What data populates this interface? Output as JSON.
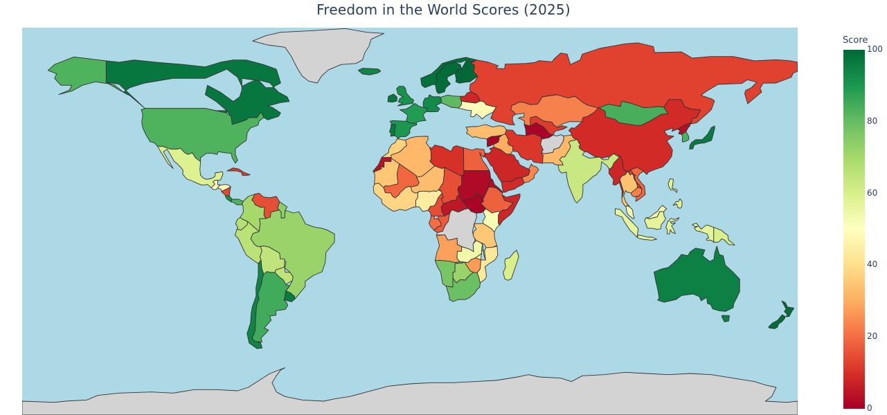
{
  "title": "Freedom in the World Scores (2025)",
  "map": {
    "ocean_color": "#add8e6",
    "no_data_color": "#d3d3d3",
    "border_color": "#333333"
  },
  "colorbar": {
    "title": "Score",
    "min": 0,
    "max": 100,
    "ticks": [
      "100",
      "80",
      "60",
      "40",
      "20",
      "0"
    ],
    "colorscale": "RdYlGn"
  },
  "chart_data": {
    "type": "choropleth",
    "title": "Freedom in the World Scores (2025)",
    "metric": "Score",
    "range": [
      0,
      100
    ],
    "regions": [
      {
        "name": "Canada",
        "value": 97
      },
      {
        "name": "Alaska (United States)",
        "value": 83
      },
      {
        "name": "United States",
        "value": 83
      },
      {
        "name": "Greenland",
        "value": null
      },
      {
        "name": "Mexico",
        "value": 59
      },
      {
        "name": "Guatemala",
        "value": 51
      },
      {
        "name": "Honduras",
        "value": 47
      },
      {
        "name": "Nicaragua",
        "value": 14
      },
      {
        "name": "Costa Rica",
        "value": 91
      },
      {
        "name": "Panama",
        "value": 83
      },
      {
        "name": "Cuba",
        "value": 12
      },
      {
        "name": "Venezuela",
        "value": 15
      },
      {
        "name": "Guyana",
        "value": 74
      },
      {
        "name": "Colombia",
        "value": 70
      },
      {
        "name": "Ecuador",
        "value": 67
      },
      {
        "name": "Peru",
        "value": 66
      },
      {
        "name": "Brazil",
        "value": 72
      },
      {
        "name": "Bolivia",
        "value": 65
      },
      {
        "name": "Paraguay",
        "value": 65
      },
      {
        "name": "Chile",
        "value": 94
      },
      {
        "name": "Argentina",
        "value": 85
      },
      {
        "name": "Uruguay",
        "value": 96
      },
      {
        "name": "Iceland",
        "value": 94
      },
      {
        "name": "Norway",
        "value": 98
      },
      {
        "name": "Sweden",
        "value": 99
      },
      {
        "name": "Finland",
        "value": 100
      },
      {
        "name": "United Kingdom",
        "value": 91
      },
      {
        "name": "Ireland",
        "value": 97
      },
      {
        "name": "France",
        "value": 89
      },
      {
        "name": "Spain",
        "value": 90
      },
      {
        "name": "Portugal",
        "value": 96
      },
      {
        "name": "Germany",
        "value": 93
      },
      {
        "name": "Poland",
        "value": 81
      },
      {
        "name": "Ukraine",
        "value": 49
      },
      {
        "name": "Belarus",
        "value": 8
      },
      {
        "name": "Russia",
        "value": 13
      },
      {
        "name": "Turkey",
        "value": 33
      },
      {
        "name": "Kazakhstan",
        "value": 23
      },
      {
        "name": "Uzbekistan",
        "value": 12
      },
      {
        "name": "Turkmenistan",
        "value": 1
      },
      {
        "name": "Afghanistan",
        "value": null
      },
      {
        "name": "Mongolia",
        "value": 84
      },
      {
        "name": "China",
        "value": 9
      },
      {
        "name": "Korea, North",
        "value": 3
      },
      {
        "name": "Korea, South",
        "value": 83
      },
      {
        "name": "Japan",
        "value": 96
      },
      {
        "name": "Iran",
        "value": 11
      },
      {
        "name": "Iraq",
        "value": 30
      },
      {
        "name": "Saudi Arabia",
        "value": 8
      },
      {
        "name": "Yemen",
        "value": 9
      },
      {
        "name": "Oman",
        "value": 24
      },
      {
        "name": "Syria",
        "value": 1
      },
      {
        "name": "Pakistan",
        "value": 32
      },
      {
        "name": "India",
        "value": 63
      },
      {
        "name": "Myanmar",
        "value": 8
      },
      {
        "name": "Thailand",
        "value": 34
      },
      {
        "name": "Vietnam",
        "value": 19
      },
      {
        "name": "Laos",
        "value": 13
      },
      {
        "name": "Cambodia",
        "value": 23
      },
      {
        "name": "Malaysia",
        "value": 53
      },
      {
        "name": "Indonesia",
        "value": 57
      },
      {
        "name": "Philippines",
        "value": 58
      },
      {
        "name": "Papua New Guinea",
        "value": 60
      },
      {
        "name": "Australia",
        "value": 95
      },
      {
        "name": "New Zealand",
        "value": 99
      },
      {
        "name": "Morocco",
        "value": 37
      },
      {
        "name": "Western Sahara",
        "value": 4
      },
      {
        "name": "Algeria",
        "value": 32
      },
      {
        "name": "Libya",
        "value": 10
      },
      {
        "name": "Egypt",
        "value": 18
      },
      {
        "name": "Mauritania",
        "value": 35
      },
      {
        "name": "Mali",
        "value": 19
      },
      {
        "name": "Niger",
        "value": 33
      },
      {
        "name": "Chad",
        "value": 15
      },
      {
        "name": "Sudan",
        "value": 2
      },
      {
        "name": "South Sudan",
        "value": 1
      },
      {
        "name": "Ethiopia",
        "value": 18
      },
      {
        "name": "Eritrea",
        "value": 3
      },
      {
        "name": "Somalia",
        "value": 8
      },
      {
        "name": "Kenya",
        "value": 52
      },
      {
        "name": "Nigeria",
        "value": 44
      },
      {
        "name": "Cameroon",
        "value": 15
      },
      {
        "name": "Central African Republic",
        "value": 5
      },
      {
        "name": "Gabon",
        "value": 20
      },
      {
        "name": "Congo, Dem. Rep.",
        "value": null
      },
      {
        "name": "Tanzania",
        "value": 35
      },
      {
        "name": "Angola",
        "value": 28
      },
      {
        "name": "Zambia",
        "value": 54
      },
      {
        "name": "Mozambique",
        "value": 43
      },
      {
        "name": "Zimbabwe",
        "value": 27
      },
      {
        "name": "Namibia",
        "value": 77
      },
      {
        "name": "Botswana",
        "value": 72
      },
      {
        "name": "South Africa",
        "value": 79
      },
      {
        "name": "Madagascar",
        "value": 60
      },
      {
        "name": "Antarctica",
        "value": null
      }
    ]
  }
}
